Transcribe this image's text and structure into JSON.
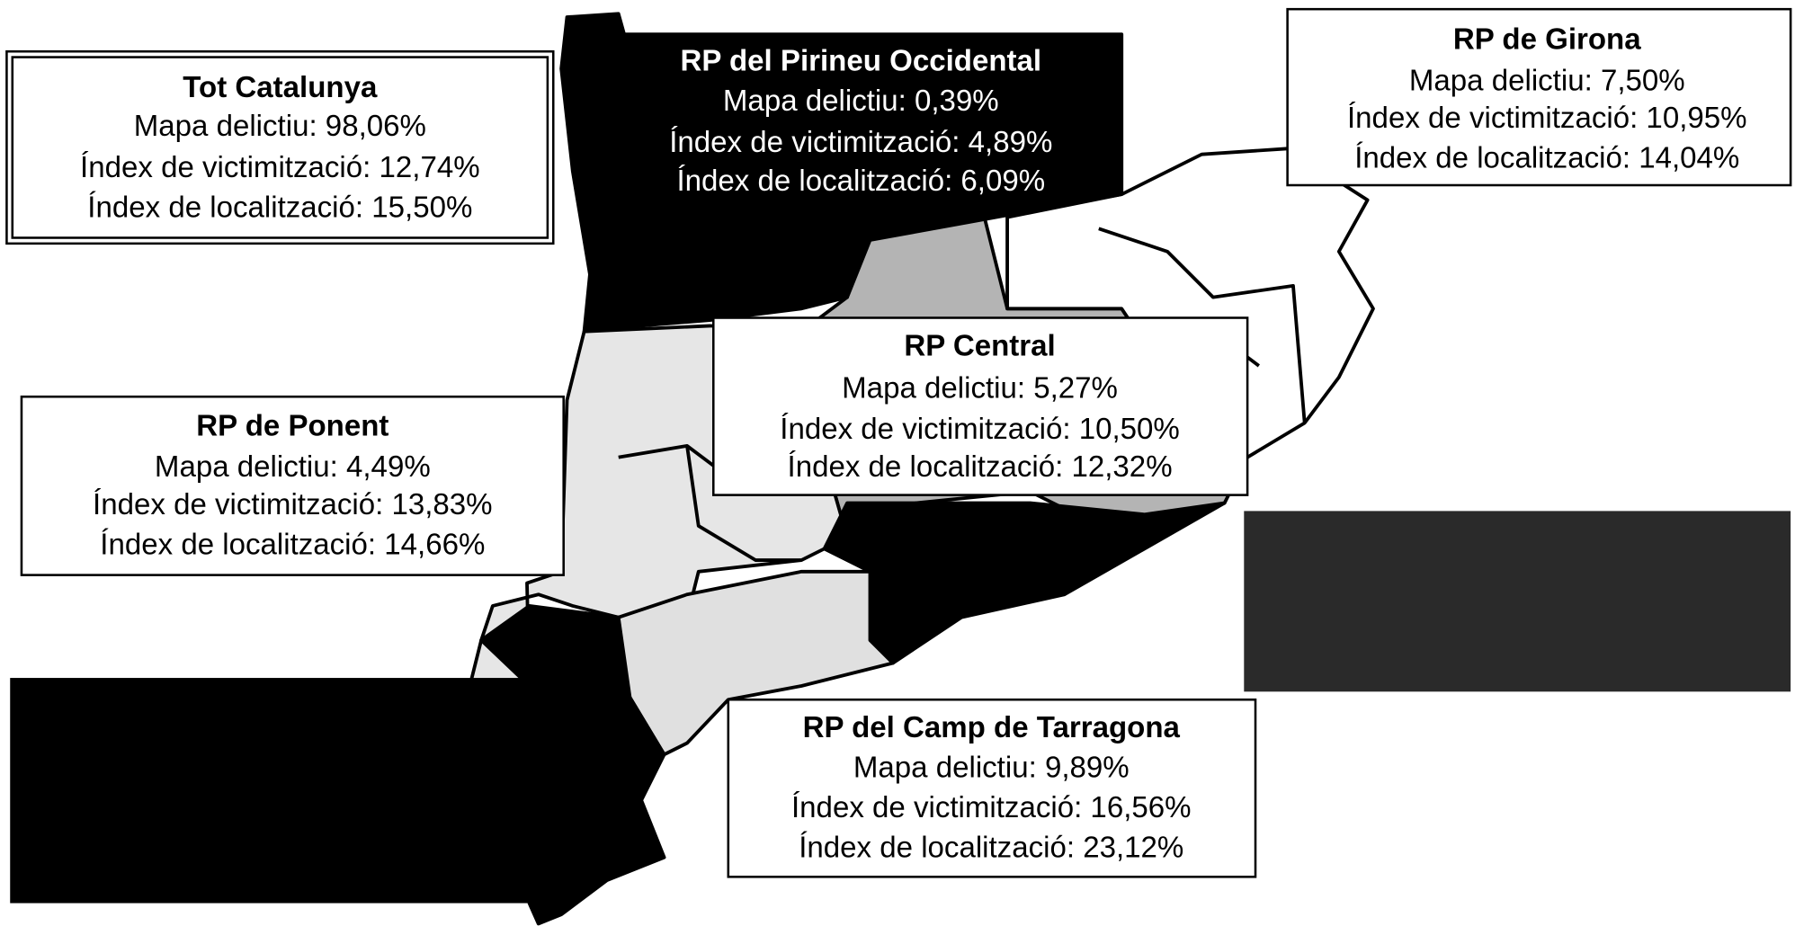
{
  "regions": [
    {
      "title": "Tot Catalunya",
      "lines": [
        "Mapa delictiu: 98,06%",
        "Índex de victimització: 12,74%",
        "Índex de localització: 15,50%"
      ]
    },
    {
      "title": "RP del Pirineu Occidental",
      "lines": [
        "Mapa delictiu: 0,39%",
        "Índex de victimització: 4,89%",
        "Índex de localització: 6,09%"
      ]
    },
    {
      "title": "RP de Girona",
      "lines": [
        "Mapa delictiu: 7,50%",
        "Índex de victimització: 10,95%",
        "Índex de localització: 14,04%"
      ]
    },
    {
      "title": "RP Central",
      "lines": [
        "Mapa delictiu: 5,27%",
        "Índex de victimització: 10,50%",
        "Índex de localització: 12,32%"
      ]
    },
    {
      "title": "RP de Ponent",
      "lines": [
        "Mapa delictiu: 4,49%",
        "Índex de victimització: 13,83%",
        "Índex de localització: 14,66%"
      ]
    },
    {
      "title": "RP del Camp de Tarragona",
      "lines": [
        "Mapa delictiu: 9,89%",
        "Índex de victimització: 16,56%",
        "Índex de localització: 23,12%"
      ]
    }
  ]
}
